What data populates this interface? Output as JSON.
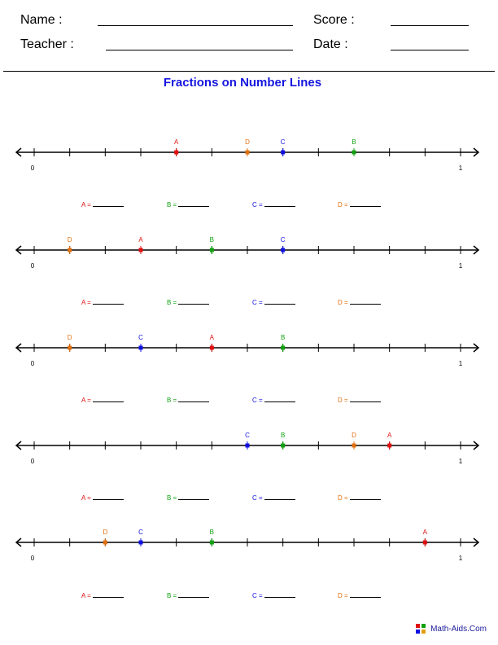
{
  "header": {
    "name_label": "Name :",
    "teacher_label": "Teacher :",
    "score_label": "Score :",
    "date_label": "Date :"
  },
  "title": "Fractions on Number Lines",
  "colors": {
    "A": "#e01010",
    "B": "#10a010",
    "C": "#1010e0",
    "D": "#e07010",
    "title": "#1616e0"
  },
  "number_lines": [
    {
      "start": "0",
      "end": "1",
      "divisions": 12,
      "points": [
        {
          "label": "A",
          "pos": 4
        },
        {
          "label": "D",
          "pos": 6
        },
        {
          "label": "C",
          "pos": 7
        },
        {
          "label": "B",
          "pos": 9
        }
      ]
    },
    {
      "start": "0",
      "end": "1",
      "divisions": 12,
      "points": [
        {
          "label": "D",
          "pos": 1
        },
        {
          "label": "A",
          "pos": 3
        },
        {
          "label": "B",
          "pos": 5
        },
        {
          "label": "C",
          "pos": 7
        }
      ]
    },
    {
      "start": "0",
      "end": "1",
      "divisions": 12,
      "points": [
        {
          "label": "D",
          "pos": 1
        },
        {
          "label": "C",
          "pos": 3
        },
        {
          "label": "A",
          "pos": 5
        },
        {
          "label": "B",
          "pos": 7
        }
      ]
    },
    {
      "start": "0",
      "end": "1",
      "divisions": 12,
      "points": [
        {
          "label": "C",
          "pos": 6
        },
        {
          "label": "B",
          "pos": 7
        },
        {
          "label": "D",
          "pos": 9
        },
        {
          "label": "A",
          "pos": 10
        }
      ]
    },
    {
      "start": "0",
      "end": "1",
      "divisions": 12,
      "points": [
        {
          "label": "D",
          "pos": 2
        },
        {
          "label": "C",
          "pos": 3
        },
        {
          "label": "B",
          "pos": 5
        },
        {
          "label": "A",
          "pos": 11
        }
      ]
    }
  ],
  "answer_labels": [
    "A =",
    "B =",
    "C =",
    "D ="
  ],
  "footer": "Math-Aids.Com"
}
